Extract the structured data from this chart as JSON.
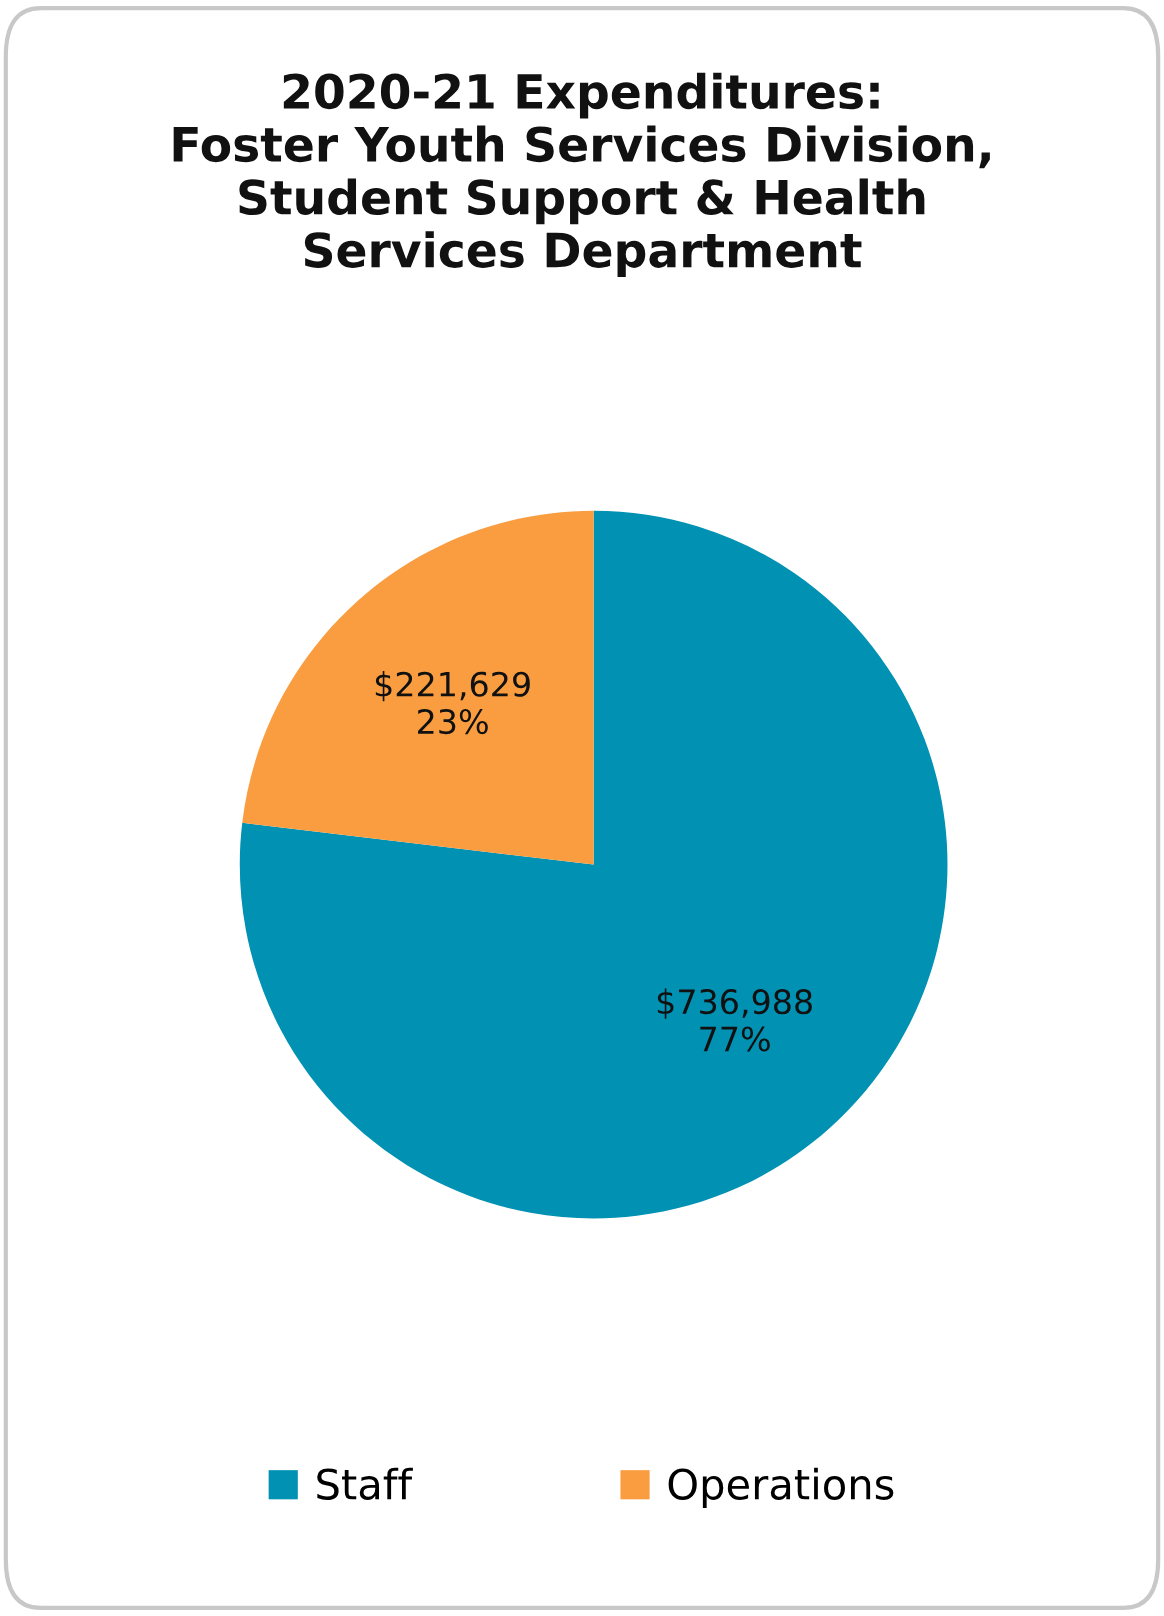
{
  "chart_data": {
    "type": "pie",
    "title": "2020-21 Expenditures:\nFoster Youth Services Division,\nStudent Support & Health\nServices Department",
    "categories": [
      "Staff",
      "Operations"
    ],
    "values": [
      736988,
      221629
    ],
    "colors": [
      "#0091b3",
      "#f99d40"
    ],
    "value_labels": [
      "$736,988\n77%",
      "$221,629\n23%"
    ],
    "legend": "bottom"
  }
}
